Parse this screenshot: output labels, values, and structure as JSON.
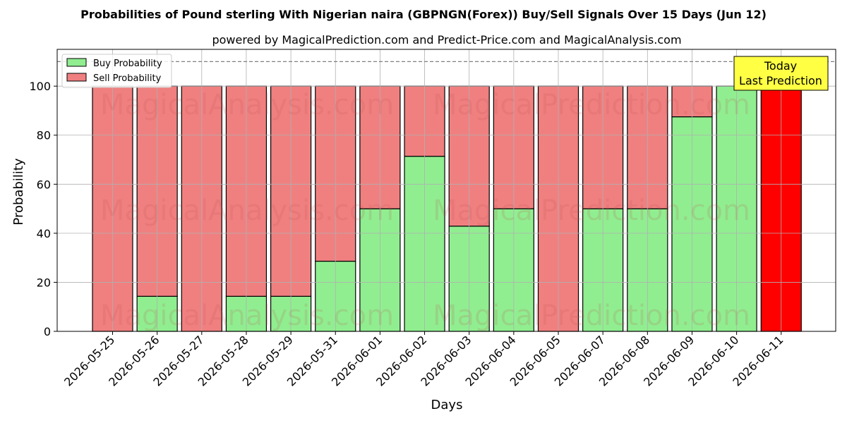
{
  "chart_data": {
    "type": "bar",
    "title": "Probabilities of Pound sterling With Nigerian naira (GBPNGN(Forex)) Buy/Sell Signals Over 15 Days (Jun 12)",
    "subtitle": "powered by MagicalPrediction.com and Predict-Price.com and MagicalAnalysis.com",
    "xlabel": "Days",
    "ylabel": "Probability",
    "ylim": [
      0,
      115
    ],
    "yticks": [
      0,
      20,
      40,
      60,
      80,
      100
    ],
    "grid": true,
    "reference_line": 110,
    "legend_position": "top-left",
    "categories": [
      "2026-05-25",
      "2026-05-26",
      "2026-05-27",
      "2026-05-28",
      "2026-05-29",
      "2026-05-31",
      "2026-06-01",
      "2026-06-02",
      "2026-06-03",
      "2026-06-04",
      "2026-06-05",
      "2026-06-07",
      "2026-06-08",
      "2026-06-09",
      "2026-06-10",
      "2026-06-11"
    ],
    "series": [
      {
        "name": "Buy Probability",
        "color": "#90ee90",
        "values": [
          0,
          14.3,
          0,
          14.3,
          14.3,
          28.6,
          50,
          71.4,
          42.9,
          50,
          0,
          50,
          50,
          87.5,
          100,
          0
        ]
      },
      {
        "name": "Sell Probability",
        "color": "#f08080",
        "values": [
          100,
          85.7,
          100,
          85.7,
          85.7,
          71.4,
          50,
          28.6,
          57.1,
          50,
          100,
          50,
          50,
          12.5,
          0,
          100
        ]
      }
    ],
    "highlight": {
      "index": 15,
      "color": "#ff0000"
    },
    "annotation": {
      "lines": [
        "Today",
        "Last Prediction"
      ],
      "color": "#ffff44"
    },
    "watermarks": [
      "MagicalAnalysis.com",
      "MagicalPrediction.com"
    ]
  }
}
